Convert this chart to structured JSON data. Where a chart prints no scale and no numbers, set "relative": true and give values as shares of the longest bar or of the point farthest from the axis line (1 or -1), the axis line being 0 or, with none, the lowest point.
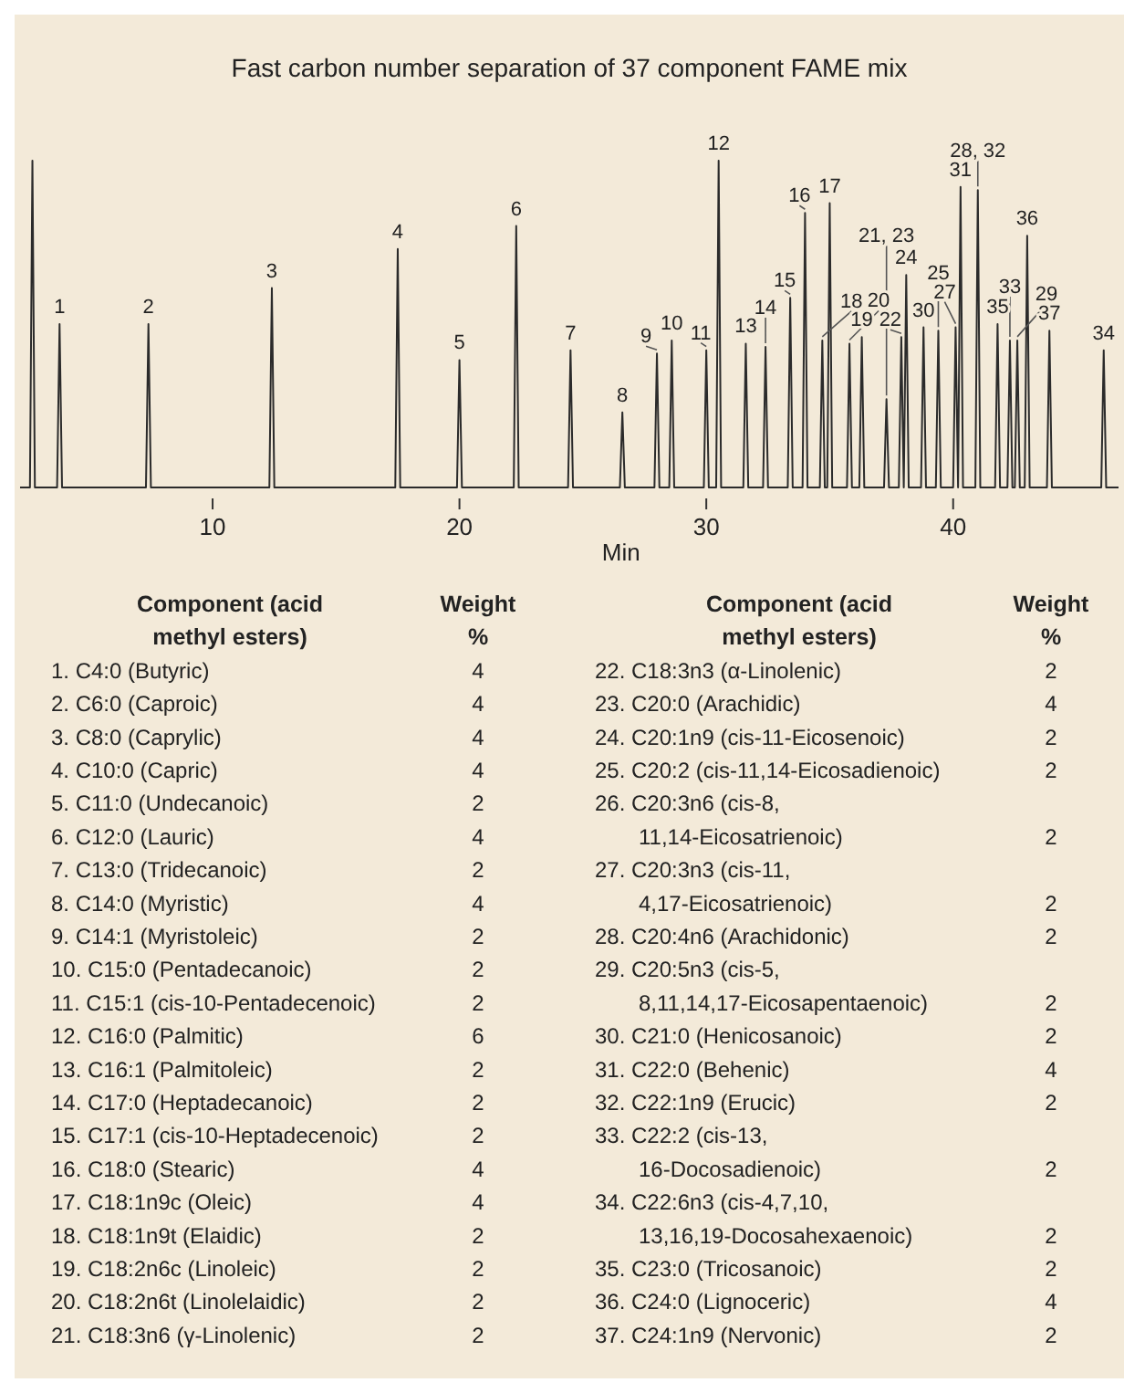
{
  "chart_data": [
    {
      "type": "line",
      "relative": true,
      "title": "Fast carbon number separation of 37 component FAME mix",
      "xlabel": "Min",
      "color": "#2b2b2b",
      "xlim": [
        2.2,
        46.7
      ],
      "xticks": [
        10,
        20,
        30,
        40
      ],
      "marker": "none",
      "x": [
        2.2,
        2.6,
        2.7,
        2.8,
        3.7,
        3.8,
        3.9,
        7.3,
        7.4,
        7.5,
        12.3,
        12.4,
        12.5,
        17.4,
        17.5,
        17.6,
        19.9,
        20.0,
        20.1,
        22.2,
        22.3,
        22.4,
        24.4,
        24.5,
        24.6,
        26.5,
        26.6,
        26.7,
        27.9,
        28.0,
        28.1,
        28.5,
        28.6,
        28.7,
        29.9,
        30.0,
        30.1,
        30.4,
        30.5,
        30.6,
        31.5,
        31.6,
        31.7,
        32.3,
        32.4,
        32.5,
        33.3,
        33.4,
        33.5,
        33.9,
        34.0,
        34.1,
        34.6,
        34.7,
        34.8,
        34.9,
        35.0,
        35.1,
        35.7,
        35.8,
        35.9,
        36.2,
        36.3,
        36.4,
        37.2,
        37.3,
        37.4,
        37.8,
        37.9,
        38.0,
        38.1,
        38.2,
        38.7,
        38.8,
        38.9,
        39.3,
        39.4,
        39.5,
        40.0,
        40.1,
        40.2,
        40.3,
        40.4,
        40.9,
        41.0,
        41.1,
        41.7,
        41.8,
        41.9,
        42.2,
        42.3,
        42.4,
        42.5,
        42.6,
        42.7,
        42.9,
        43.0,
        43.1,
        43.8,
        43.9,
        44.0,
        46.0,
        46.1,
        46.2,
        46.7
      ],
      "values": [
        0,
        0,
        1.0,
        0,
        0,
        0.5,
        0,
        0,
        0.5,
        0,
        0,
        0.61,
        0,
        0,
        0.73,
        0,
        0,
        0.39,
        0,
        0,
        0.8,
        0,
        0,
        0.42,
        0,
        0,
        0.23,
        0,
        0,
        0.41,
        0,
        0,
        0.45,
        0,
        0,
        0.42,
        0,
        0,
        1.0,
        0,
        0,
        0.44,
        0,
        0,
        0.43,
        0,
        0,
        0.58,
        0,
        0,
        0.84,
        0,
        0,
        0.45,
        0,
        0,
        0.87,
        0,
        0,
        0.44,
        0,
        0,
        0.46,
        0,
        0,
        0.27,
        0,
        0,
        0.46,
        0,
        0.65,
        0,
        0,
        0.49,
        0,
        0,
        0.48,
        0,
        0,
        0.49,
        0,
        0.92,
        0,
        0,
        0.91,
        0,
        0,
        0.5,
        0,
        0,
        0.45,
        0,
        0,
        0.45,
        0,
        0,
        0.77,
        0,
        0,
        0.48,
        0,
        0,
        0.42,
        0,
        0
      ],
      "annotations": [
        {
          "text": "1",
          "x": 3.8,
          "y": 0.5
        },
        {
          "text": "2",
          "x": 7.4,
          "y": 0.5
        },
        {
          "text": "3",
          "x": 12.4,
          "y": 0.61
        },
        {
          "text": "4",
          "x": 17.5,
          "y": 0.73
        },
        {
          "text": "5",
          "x": 20.0,
          "y": 0.39
        },
        {
          "text": "6",
          "x": 22.3,
          "y": 0.8
        },
        {
          "text": "7",
          "x": 24.5,
          "y": 0.42
        },
        {
          "text": "8",
          "x": 26.6,
          "y": 0.23
        },
        {
          "text": "9",
          "x": 28.0,
          "y": 0.41
        },
        {
          "text": "10",
          "x": 28.6,
          "y": 0.45
        },
        {
          "text": "11",
          "x": 30.0,
          "y": 0.42
        },
        {
          "text": "12",
          "x": 30.5,
          "y": 1.0
        },
        {
          "text": "13",
          "x": 31.6,
          "y": 0.44
        },
        {
          "text": "14",
          "x": 32.4,
          "y": 0.43
        },
        {
          "text": "15",
          "x": 33.4,
          "y": 0.58
        },
        {
          "text": "16",
          "x": 34.0,
          "y": 0.84
        },
        {
          "text": "18",
          "x": 34.7,
          "y": 0.45
        },
        {
          "text": "17",
          "x": 35.0,
          "y": 0.87
        },
        {
          "text": "20",
          "x": 35.8,
          "y": 0.44
        },
        {
          "text": "19",
          "x": 36.3,
          "y": 0.46
        },
        {
          "text": "21, 23",
          "x": 37.3,
          "y": 0.27
        },
        {
          "text": "22",
          "x": 37.9,
          "y": 0.46
        },
        {
          "text": "24",
          "x": 38.1,
          "y": 0.65
        },
        {
          "text": "30",
          "x": 38.8,
          "y": 0.49
        },
        {
          "text": "25",
          "x": 39.4,
          "y": 0.48
        },
        {
          "text": "27",
          "x": 40.1,
          "y": 0.49
        },
        {
          "text": "31",
          "x": 40.3,
          "y": 0.92
        },
        {
          "text": "28, 32",
          "x": 41.0,
          "y": 0.91
        },
        {
          "text": "35",
          "x": 41.8,
          "y": 0.5
        },
        {
          "text": "33",
          "x": 42.3,
          "y": 0.45
        },
        {
          "text": "29",
          "x": 42.6,
          "y": 0.45
        },
        {
          "text": "36",
          "x": 43.0,
          "y": 0.77
        },
        {
          "text": "37",
          "x": 43.9,
          "y": 0.48
        },
        {
          "text": "34",
          "x": 46.1,
          "y": 0.42
        }
      ]
    },
    {
      "type": "other",
      "annotations": [
        "Component (acid methyl esters)",
        "Weight %",
        "1. C4:0 (Butyric)",
        "4",
        "2. C6:0 (Caproic)",
        "4",
        "3. C8:0 (Caprylic)",
        "4",
        "4. C10:0 (Capric)",
        "4",
        "5. C11:0 (Undecanoic)",
        "2",
        "6. C12:0 (Lauric)",
        "4",
        "7. C13:0 (Tridecanoic)",
        "2",
        "8. C14:0 (Myristic)",
        "4",
        "9. C14:1 (Myristoleic)",
        "2",
        "10. C15:0 (Pentadecanoic)",
        "2",
        "11. C15:1 (cis-10-Pentadecenoic)",
        "2",
        "12. C16:0 (Palmitic)",
        "6",
        "13. C16:1 (Palmitoleic)",
        "2",
        "14. C17:0 (Heptadecanoic)",
        "2",
        "15. C17:1 (cis-10-Heptadecenoic)",
        "2",
        "16. C18:0 (Stearic)",
        "4",
        "17. C18:1n9c (Oleic)",
        "4",
        "18. C18:1n9t (Elaidic)",
        "2",
        "19. C18:2n6c (Linoleic)",
        "2",
        "20. C18:2n6t (Linolelaidic)",
        "2",
        "21. C18:3n6 (γ-Linolenic)",
        "2",
        "22. C18:3n3 (α-Linolenic)",
        "2",
        "23. C20:0 (Arachidic)",
        "4",
        "24. C20:1n9 (cis-11-Eicosenoic)",
        "2",
        "25. C20:2 (cis-11,14-Eicosadienoic)",
        "2",
        "26. C20:3n6 (cis-8, 11,14-Eicosatrienoic)",
        "2",
        "27. C20:3n3 (cis-11, 4,17-Eicosatrienoic)",
        "2",
        "28. C20:4n6 (Arachidonic)",
        "2",
        "29. C20:5n3 (cis-5, 8,11,14,17-Eicosapentaenoic)",
        "2",
        "30. C21:0 (Henicosanoic)",
        "2",
        "31. C22:0 (Behenic)",
        "4",
        "32. C22:1n9 (Erucic)",
        "2",
        "33. C22:2 (cis-13, 16-Docosadienoic)",
        "2",
        "34. C22:6n3 (cis-4,7,10, 13,16,19-Docosahexaenoic)",
        "2",
        "35. C23:0 (Tricosanoic)",
        "2",
        "36. C24:0 (Lignoceric)",
        "4",
        "37. C24:1n9 (Nervonic)",
        "2"
      ]
    }
  ]
}
